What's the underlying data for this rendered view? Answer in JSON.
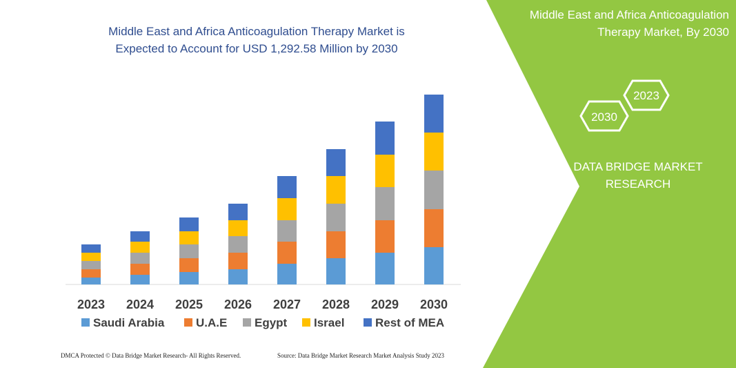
{
  "chart_data": {
    "type": "stacked_bar",
    "title": "Middle East and Africa Anticoagulation Therapy Market is Expected to Account for USD 1,292.58 Million by 2030",
    "categories": [
      "2023",
      "2024",
      "2025",
      "2026",
      "2027",
      "2028",
      "2029",
      "2030"
    ],
    "series": [
      {
        "name": "Saudi Arabia",
        "color": "#5b9bd5",
        "values": [
          10,
          14,
          18,
          22,
          30,
          38,
          46,
          54
        ]
      },
      {
        "name": "U.A.E",
        "color": "#ed7d31",
        "values": [
          12,
          16,
          20,
          24,
          32,
          39,
          47,
          55
        ]
      },
      {
        "name": "Egypt",
        "color": "#a5a5a5",
        "values": [
          12,
          16,
          20,
          24,
          31,
          40,
          48,
          56
        ]
      },
      {
        "name": "Israel",
        "color": "#ffc000",
        "values": [
          12,
          16,
          19,
          23,
          32,
          40,
          47,
          55
        ]
      },
      {
        "name": "Rest of MEA",
        "color": "#4472c4",
        "values": [
          12,
          15,
          20,
          24,
          32,
          39,
          48,
          55
        ]
      }
    ],
    "legend": "bottom"
  },
  "panel": {
    "title": "Middle East and Africa Anticoagulation Therapy Market, By 2030",
    "hexagons": [
      "2023",
      "2030"
    ],
    "brand": "DATA BRIDGE MARKET RESEARCH"
  },
  "footer": {
    "left": "DMCA Protected © Data Bridge Market Research- All Rights Reserved.",
    "right": "Source: Data Bridge Market Research Market Analysis Study 2023"
  }
}
